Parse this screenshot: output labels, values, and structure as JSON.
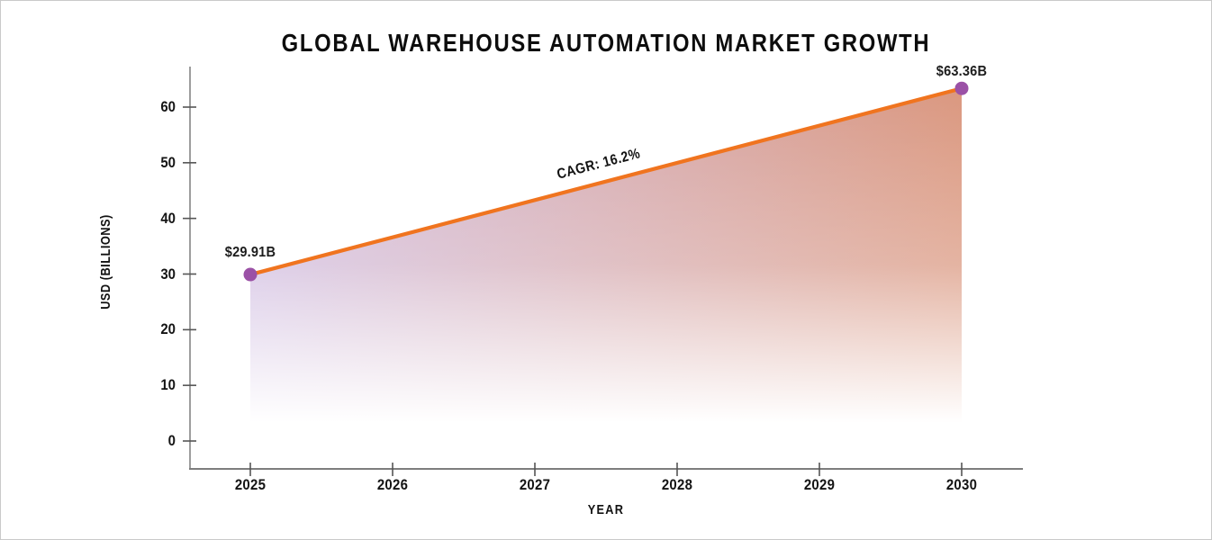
{
  "page": {
    "background": "#ffffff",
    "border_color": "#c9c9c9"
  },
  "chart_data": {
    "type": "area",
    "title": "GLOBAL WAREHOUSE AUTOMATION MARKET GROWTH",
    "xlabel": "YEAR",
    "ylabel": "USD (BILLIONS)",
    "points": [
      {
        "year": 2025,
        "value": 29.91,
        "label": "$29.91B"
      },
      {
        "year": 2030,
        "value": 63.36,
        "label": "$63.36B"
      }
    ],
    "annotation": "CAGR: 16.2%",
    "x_ticks": [
      2025,
      2026,
      2027,
      2028,
      2029,
      2030
    ],
    "y_ticks": [
      0,
      10,
      20,
      30,
      40,
      50,
      60
    ],
    "ylim": [
      0,
      65
    ],
    "grid": false,
    "legend": "none",
    "colors": {
      "line": "#f0741f",
      "marker": "#9b51a6",
      "area_left": "#cab4dd",
      "area_right": "#d5886c",
      "axis": "#7d7d7d",
      "tick": "#555555",
      "text": "#111111"
    }
  }
}
